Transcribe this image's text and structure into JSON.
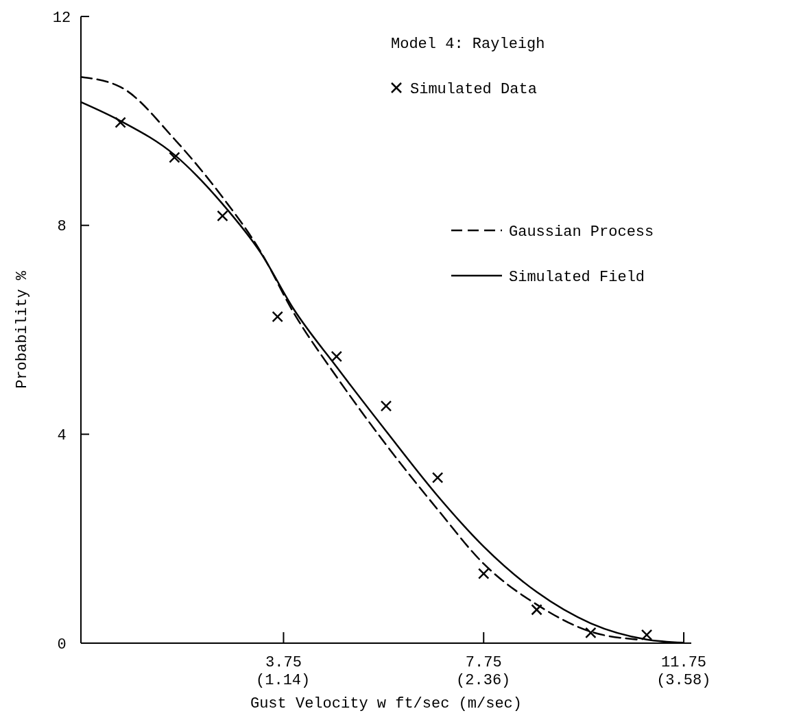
{
  "chart_data": {
    "type": "line",
    "xlabel": "Gust Velocity w  ft/sec (m/sec)",
    "ylabel": "Probability %",
    "legend_title": "Model 4:  Rayleigh",
    "legend": "top right",
    "grid": false,
    "xlim": [
      -0.3,
      11.9
    ],
    "xticks": [
      3.75,
      7.75,
      11.75
    ],
    "x2lim": [
      -0.091,
      3.627
    ],
    "x2ticks": [
      {
        "value": 1.14,
        "label": "(1.14)"
      },
      {
        "value": 2.36,
        "label": "(2.36)"
      },
      {
        "value": 3.58,
        "label": "(3.58)"
      }
    ],
    "ylim": [
      0,
      12
    ],
    "yticks": [
      0,
      4,
      8,
      12
    ],
    "series": [
      {
        "name": "Simulated Data",
        "type": "scatter",
        "marker": "cross",
        "color": "#000000",
        "x": [
          0.49,
          1.57,
          2.53,
          3.63,
          4.81,
          5.8,
          6.83,
          7.75,
          8.81,
          9.89,
          11.01
        ],
        "values": [
          9.97,
          9.3,
          8.18,
          6.25,
          5.49,
          4.54,
          3.17,
          1.33,
          0.64,
          0.2,
          0.16
        ]
      },
      {
        "name": "Gaussian Process",
        "type": "line",
        "line_style": "dashed",
        "color": "#000000",
        "x": [
          -0.3,
          0.49,
          1.57,
          2.53,
          3.29,
          3.95,
          4.81,
          5.8,
          6.83,
          7.75,
          8.81,
          9.89,
          10.81
        ],
        "values": [
          10.84,
          10.65,
          9.65,
          8.54,
          7.5,
          6.33,
          5.1,
          3.8,
          2.56,
          1.52,
          0.74,
          0.22,
          0.07
        ]
      },
      {
        "name": "Simulated Field",
        "type": "line",
        "line_style": "solid",
        "color": "#000000",
        "x": [
          -0.3,
          0.49,
          1.57,
          2.53,
          3.29,
          3.95,
          4.81,
          5.8,
          6.83,
          7.75,
          8.81,
          9.89,
          11.01,
          11.74
        ],
        "values": [
          10.36,
          10.0,
          9.35,
          8.41,
          7.48,
          6.4,
          5.29,
          4.06,
          2.82,
          1.85,
          0.98,
          0.38,
          0.07,
          0.01
        ]
      }
    ]
  }
}
